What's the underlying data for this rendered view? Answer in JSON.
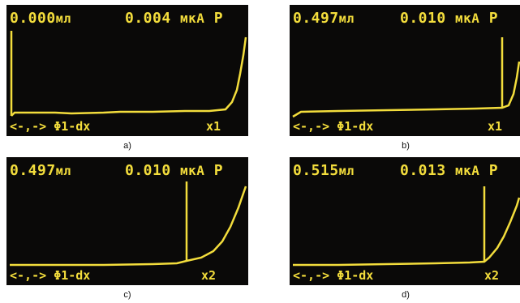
{
  "colors": {
    "screen_bg": "#0a0908",
    "trace": "#f3dd3c",
    "caption": "#111111"
  },
  "panels": [
    {
      "id": "a",
      "volume": "0.000",
      "volume_unit": "мл",
      "current": "0.004",
      "current_unit": "мкА",
      "mode": "P",
      "nav": "<-,->",
      "func": "Φ1-dx",
      "scale": "x1",
      "caption": "a)"
    },
    {
      "id": "b",
      "volume": "0.497",
      "volume_unit": "мл",
      "current": "0.010",
      "current_unit": "мкА",
      "mode": "P",
      "nav": "<-,->",
      "func": "Φ1-dx",
      "scale": "x1",
      "caption": "b)"
    },
    {
      "id": "c",
      "volume": "0.497",
      "volume_unit": "мл",
      "current": "0.010",
      "current_unit": "мкА",
      "mode": "P",
      "nav": "<-,->",
      "func": "Φ1-dx",
      "scale": "x2",
      "caption": "c)"
    },
    {
      "id": "d",
      "volume": "0.515",
      "volume_unit": "мл",
      "current": "0.013",
      "current_unit": "мкА",
      "mode": "P",
      "nav": "<-,->",
      "func": "Φ1-dx",
      "scale": "x2",
      "caption": "d)"
    }
  ]
}
